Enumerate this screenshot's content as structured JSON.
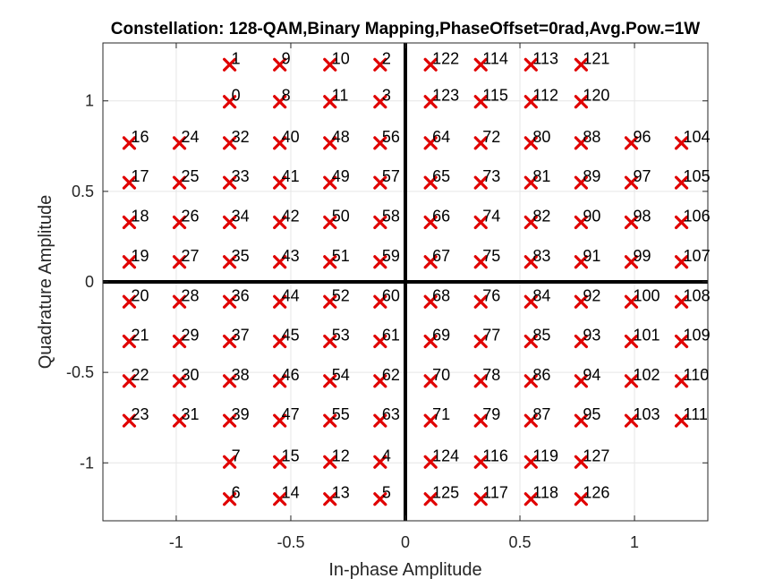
{
  "chart_data": {
    "type": "scatter",
    "title": "Constellation: 128-QAM,Binary Mapping,PhaseOffset=0rad,Avg.Pow.=1W",
    "xlabel": "In-phase Amplitude",
    "ylabel": "Quadrature Amplitude",
    "xlim": [
      -1.32,
      1.32
    ],
    "ylim": [
      -1.32,
      1.32
    ],
    "xticks": [
      -1,
      -0.5,
      0,
      0.5,
      1
    ],
    "xtick_labels": [
      "-1",
      "-0.5",
      "0",
      "0.5",
      "1"
    ],
    "yticks": [
      -1,
      -0.5,
      0,
      0.5,
      1
    ],
    "ytick_labels": [
      "-1",
      "-0.5",
      "0",
      "0.5",
      "1"
    ],
    "grid": true,
    "marker": "x",
    "marker_color": "#e00000",
    "axis_line_color": "#000000",
    "grid_color": "#e6e6e6",
    "points": [
      {
        "x": -0.767,
        "y": 1.2,
        "label": "1"
      },
      {
        "x": -0.548,
        "y": 1.2,
        "label": "9"
      },
      {
        "x": -0.329,
        "y": 1.2,
        "label": "10"
      },
      {
        "x": -0.11,
        "y": 1.2,
        "label": "2"
      },
      {
        "x": 0.11,
        "y": 1.2,
        "label": "122"
      },
      {
        "x": 0.329,
        "y": 1.2,
        "label": "114"
      },
      {
        "x": 0.548,
        "y": 1.2,
        "label": "113"
      },
      {
        "x": 0.767,
        "y": 1.2,
        "label": "121"
      },
      {
        "x": -0.767,
        "y": 0.995,
        "label": "0"
      },
      {
        "x": -0.548,
        "y": 0.995,
        "label": "8"
      },
      {
        "x": -0.329,
        "y": 0.995,
        "label": "11"
      },
      {
        "x": -0.11,
        "y": 0.995,
        "label": "3"
      },
      {
        "x": 0.11,
        "y": 0.995,
        "label": "123"
      },
      {
        "x": 0.329,
        "y": 0.995,
        "label": "115"
      },
      {
        "x": 0.548,
        "y": 0.995,
        "label": "112"
      },
      {
        "x": 0.767,
        "y": 0.995,
        "label": "120"
      },
      {
        "x": -1.205,
        "y": 0.767,
        "label": "16"
      },
      {
        "x": -0.986,
        "y": 0.767,
        "label": "24"
      },
      {
        "x": -0.767,
        "y": 0.767,
        "label": "32"
      },
      {
        "x": -0.548,
        "y": 0.767,
        "label": "40"
      },
      {
        "x": -0.329,
        "y": 0.767,
        "label": "48"
      },
      {
        "x": -0.11,
        "y": 0.767,
        "label": "56"
      },
      {
        "x": 0.11,
        "y": 0.767,
        "label": "64"
      },
      {
        "x": 0.329,
        "y": 0.767,
        "label": "72"
      },
      {
        "x": 0.548,
        "y": 0.767,
        "label": "80"
      },
      {
        "x": 0.767,
        "y": 0.767,
        "label": "88"
      },
      {
        "x": 0.986,
        "y": 0.767,
        "label": "96"
      },
      {
        "x": 1.205,
        "y": 0.767,
        "label": "104"
      },
      {
        "x": -1.205,
        "y": 0.548,
        "label": "17"
      },
      {
        "x": -0.986,
        "y": 0.548,
        "label": "25"
      },
      {
        "x": -0.767,
        "y": 0.548,
        "label": "33"
      },
      {
        "x": -0.548,
        "y": 0.548,
        "label": "41"
      },
      {
        "x": -0.329,
        "y": 0.548,
        "label": "49"
      },
      {
        "x": -0.11,
        "y": 0.548,
        "label": "57"
      },
      {
        "x": 0.11,
        "y": 0.548,
        "label": "65"
      },
      {
        "x": 0.329,
        "y": 0.548,
        "label": "73"
      },
      {
        "x": 0.548,
        "y": 0.548,
        "label": "81"
      },
      {
        "x": 0.767,
        "y": 0.548,
        "label": "89"
      },
      {
        "x": 0.986,
        "y": 0.548,
        "label": "97"
      },
      {
        "x": 1.205,
        "y": 0.548,
        "label": "105"
      },
      {
        "x": -1.205,
        "y": 0.329,
        "label": "18"
      },
      {
        "x": -0.986,
        "y": 0.329,
        "label": "26"
      },
      {
        "x": -0.767,
        "y": 0.329,
        "label": "34"
      },
      {
        "x": -0.548,
        "y": 0.329,
        "label": "42"
      },
      {
        "x": -0.329,
        "y": 0.329,
        "label": "50"
      },
      {
        "x": -0.11,
        "y": 0.329,
        "label": "58"
      },
      {
        "x": 0.11,
        "y": 0.329,
        "label": "66"
      },
      {
        "x": 0.329,
        "y": 0.329,
        "label": "74"
      },
      {
        "x": 0.548,
        "y": 0.329,
        "label": "82"
      },
      {
        "x": 0.767,
        "y": 0.329,
        "label": "90"
      },
      {
        "x": 0.986,
        "y": 0.329,
        "label": "98"
      },
      {
        "x": 1.205,
        "y": 0.329,
        "label": "106"
      },
      {
        "x": -1.205,
        "y": 0.11,
        "label": "19"
      },
      {
        "x": -0.986,
        "y": 0.11,
        "label": "27"
      },
      {
        "x": -0.767,
        "y": 0.11,
        "label": "35"
      },
      {
        "x": -0.548,
        "y": 0.11,
        "label": "43"
      },
      {
        "x": -0.329,
        "y": 0.11,
        "label": "51"
      },
      {
        "x": -0.11,
        "y": 0.11,
        "label": "59"
      },
      {
        "x": 0.11,
        "y": 0.11,
        "label": "67"
      },
      {
        "x": 0.329,
        "y": 0.11,
        "label": "75"
      },
      {
        "x": 0.548,
        "y": 0.11,
        "label": "83"
      },
      {
        "x": 0.767,
        "y": 0.11,
        "label": "91"
      },
      {
        "x": 0.986,
        "y": 0.11,
        "label": "99"
      },
      {
        "x": 1.205,
        "y": 0.11,
        "label": "107"
      },
      {
        "x": -1.205,
        "y": -0.11,
        "label": "20"
      },
      {
        "x": -0.986,
        "y": -0.11,
        "label": "28"
      },
      {
        "x": -0.767,
        "y": -0.11,
        "label": "36"
      },
      {
        "x": -0.548,
        "y": -0.11,
        "label": "44"
      },
      {
        "x": -0.329,
        "y": -0.11,
        "label": "52"
      },
      {
        "x": -0.11,
        "y": -0.11,
        "label": "60"
      },
      {
        "x": 0.11,
        "y": -0.11,
        "label": "68"
      },
      {
        "x": 0.329,
        "y": -0.11,
        "label": "76"
      },
      {
        "x": 0.548,
        "y": -0.11,
        "label": "84"
      },
      {
        "x": 0.767,
        "y": -0.11,
        "label": "92"
      },
      {
        "x": 0.986,
        "y": -0.11,
        "label": "100"
      },
      {
        "x": 1.205,
        "y": -0.11,
        "label": "108"
      },
      {
        "x": -1.205,
        "y": -0.329,
        "label": "21"
      },
      {
        "x": -0.986,
        "y": -0.329,
        "label": "29"
      },
      {
        "x": -0.767,
        "y": -0.329,
        "label": "37"
      },
      {
        "x": -0.548,
        "y": -0.329,
        "label": "45"
      },
      {
        "x": -0.329,
        "y": -0.329,
        "label": "53"
      },
      {
        "x": -0.11,
        "y": -0.329,
        "label": "61"
      },
      {
        "x": 0.11,
        "y": -0.329,
        "label": "69"
      },
      {
        "x": 0.329,
        "y": -0.329,
        "label": "77"
      },
      {
        "x": 0.548,
        "y": -0.329,
        "label": "85"
      },
      {
        "x": 0.767,
        "y": -0.329,
        "label": "93"
      },
      {
        "x": 0.986,
        "y": -0.329,
        "label": "101"
      },
      {
        "x": 1.205,
        "y": -0.329,
        "label": "109"
      },
      {
        "x": -1.205,
        "y": -0.548,
        "label": "22"
      },
      {
        "x": -0.986,
        "y": -0.548,
        "label": "30"
      },
      {
        "x": -0.767,
        "y": -0.548,
        "label": "38"
      },
      {
        "x": -0.548,
        "y": -0.548,
        "label": "46"
      },
      {
        "x": -0.329,
        "y": -0.548,
        "label": "54"
      },
      {
        "x": -0.11,
        "y": -0.548,
        "label": "62"
      },
      {
        "x": 0.11,
        "y": -0.548,
        "label": "70"
      },
      {
        "x": 0.329,
        "y": -0.548,
        "label": "78"
      },
      {
        "x": 0.548,
        "y": -0.548,
        "label": "86"
      },
      {
        "x": 0.767,
        "y": -0.548,
        "label": "94"
      },
      {
        "x": 0.986,
        "y": -0.548,
        "label": "102"
      },
      {
        "x": 1.205,
        "y": -0.548,
        "label": "110"
      },
      {
        "x": -1.205,
        "y": -0.767,
        "label": "23"
      },
      {
        "x": -0.986,
        "y": -0.767,
        "label": "31"
      },
      {
        "x": -0.767,
        "y": -0.767,
        "label": "39"
      },
      {
        "x": -0.548,
        "y": -0.767,
        "label": "47"
      },
      {
        "x": -0.329,
        "y": -0.767,
        "label": "55"
      },
      {
        "x": -0.11,
        "y": -0.767,
        "label": "63"
      },
      {
        "x": 0.11,
        "y": -0.767,
        "label": "71"
      },
      {
        "x": 0.329,
        "y": -0.767,
        "label": "79"
      },
      {
        "x": 0.548,
        "y": -0.767,
        "label": "87"
      },
      {
        "x": 0.767,
        "y": -0.767,
        "label": "95"
      },
      {
        "x": 0.986,
        "y": -0.767,
        "label": "103"
      },
      {
        "x": 1.205,
        "y": -0.767,
        "label": "111"
      },
      {
        "x": -0.767,
        "y": -0.995,
        "label": "7"
      },
      {
        "x": -0.548,
        "y": -0.995,
        "label": "15"
      },
      {
        "x": -0.329,
        "y": -0.995,
        "label": "12"
      },
      {
        "x": -0.11,
        "y": -0.995,
        "label": "4"
      },
      {
        "x": 0.11,
        "y": -0.995,
        "label": "124"
      },
      {
        "x": 0.329,
        "y": -0.995,
        "label": "116"
      },
      {
        "x": 0.548,
        "y": -0.995,
        "label": "119"
      },
      {
        "x": 0.767,
        "y": -0.995,
        "label": "127"
      },
      {
        "x": -0.767,
        "y": -1.2,
        "label": "6"
      },
      {
        "x": -0.548,
        "y": -1.2,
        "label": "14"
      },
      {
        "x": -0.329,
        "y": -1.2,
        "label": "13"
      },
      {
        "x": -0.11,
        "y": -1.2,
        "label": "5"
      },
      {
        "x": 0.11,
        "y": -1.2,
        "label": "125"
      },
      {
        "x": 0.329,
        "y": -1.2,
        "label": "117"
      },
      {
        "x": 0.548,
        "y": -1.2,
        "label": "118"
      },
      {
        "x": 0.767,
        "y": -1.2,
        "label": "126"
      }
    ]
  }
}
